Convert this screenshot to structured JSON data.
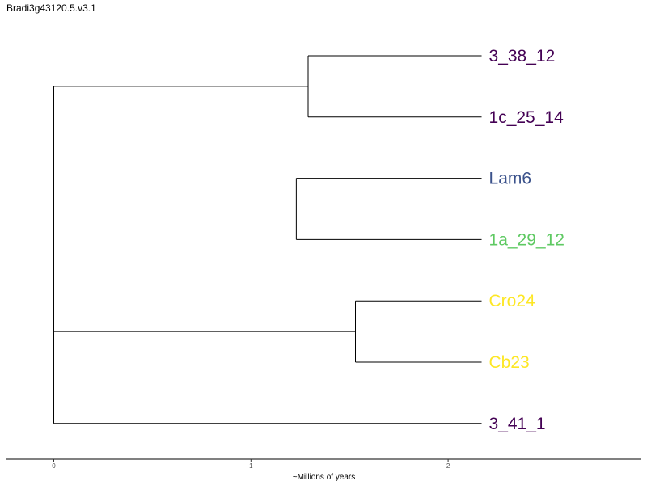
{
  "chart_data": {
    "type": "dendrogram",
    "title": "Bradi3g43120.5.v3.1",
    "xlabel": "~Millions of years",
    "xlim": [
      -0.24,
      2.98
    ],
    "x_ticks": [
      {
        "value": 0,
        "label": "0"
      },
      {
        "value": 1,
        "label": "1"
      },
      {
        "value": 2,
        "label": "2"
      }
    ],
    "tip_depth": 2.17,
    "leaves": [
      {
        "id": "3_38_12",
        "label": "3_38_12",
        "color": "#440154"
      },
      {
        "id": "1c_25_14",
        "label": "1c_25_14",
        "color": "#440154"
      },
      {
        "id": "Lam6",
        "label": "Lam6",
        "color": "#3b528b"
      },
      {
        "id": "1a_29_12",
        "label": "1a_29_12",
        "color": "#5ec962"
      },
      {
        "id": "Cro24",
        "label": "Cro24",
        "color": "#fde725"
      },
      {
        "id": "Cb23",
        "label": "Cb23",
        "color": "#fde725"
      },
      {
        "id": "3_41_1",
        "label": "3_41_1",
        "color": "#440154"
      }
    ],
    "tree": {
      "x": 0,
      "children": [
        {
          "x": 1.29,
          "children": [
            {
              "leaf": "3_38_12"
            },
            {
              "leaf": "1c_25_14"
            }
          ]
        },
        {
          "x": 1.23,
          "children": [
            {
              "leaf": "Lam6"
            },
            {
              "leaf": "1a_29_12"
            }
          ]
        },
        {
          "x": 1.53,
          "children": [
            {
              "leaf": "Cro24"
            },
            {
              "leaf": "Cb23"
            }
          ]
        },
        {
          "leaf": "3_41_1"
        }
      ]
    },
    "line_color": "#000000",
    "grid": false,
    "legend": "none"
  }
}
